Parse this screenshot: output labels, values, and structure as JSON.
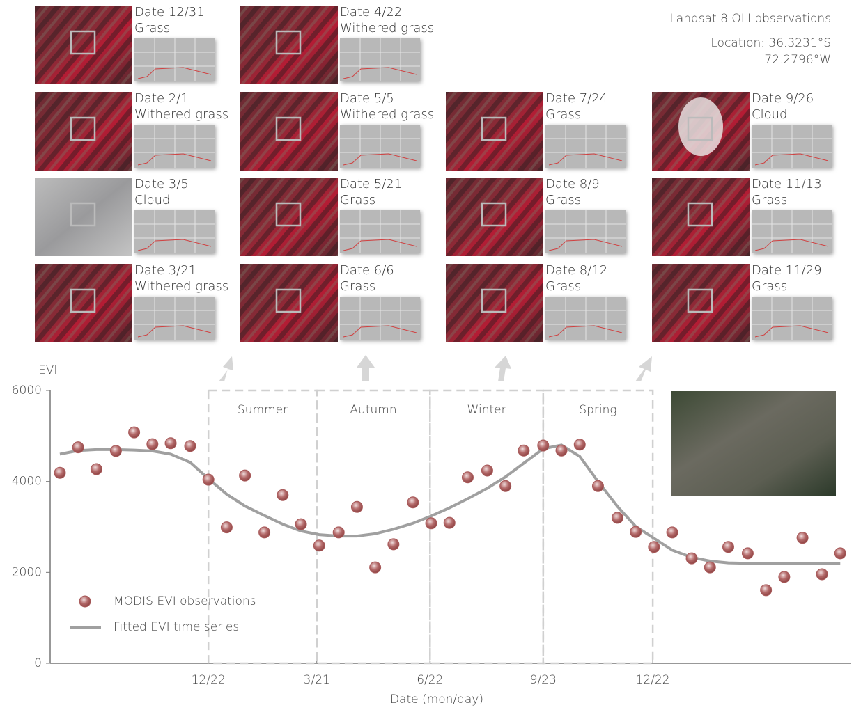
{
  "header": {
    "title": "Landsat 8 OLI observations",
    "location": [
      "Location: 36.3231°S",
      "72.2796°W"
    ]
  },
  "panels": [
    {
      "date": "Date 12/31",
      "label": "Grass"
    },
    {
      "date": "Date 2/1",
      "label": "Withered grass"
    },
    {
      "date": "Date 3/5",
      "label": "Cloud"
    },
    {
      "date": "Date 3/21",
      "label": "Withered grass"
    },
    {
      "date": "Date 4/22",
      "label": "Withered grass"
    },
    {
      "date": "Date 5/5",
      "label": "Withered grass"
    },
    {
      "date": "Date 5/21",
      "label": "Grass"
    },
    {
      "date": "Date 6/6",
      "label": "Grass"
    },
    {
      "date": "Date 7/24",
      "label": "Grass"
    },
    {
      "date": "Date 8/9",
      "label": "Grass"
    },
    {
      "date": "Date 8/12",
      "label": "Grass"
    },
    {
      "date": "Date 9/26",
      "label": "Cloud"
    },
    {
      "date": "Date 11/13",
      "label": "Grass"
    },
    {
      "date": "Date 11/29",
      "label": "Grass"
    }
  ],
  "chart_data": {
    "type": "scatter",
    "y_label": "EVI",
    "x_label": "Date (mon/day)",
    "ylim": [
      0,
      6000
    ],
    "yticks": [
      0,
      2000,
      4000,
      6000
    ],
    "xlim": [
      -130,
      528
    ],
    "xticks": [
      {
        "value": 0,
        "label": "12/22"
      },
      {
        "value": 89,
        "label": "3/21"
      },
      {
        "value": 182,
        "label": "6/22"
      },
      {
        "value": 275,
        "label": "9/23"
      },
      {
        "value": 365,
        "label": "12/22"
      }
    ],
    "spans": [
      {
        "label": "Summer",
        "xlim": [
          0,
          89
        ]
      },
      {
        "label": "Autumn",
        "xlim": [
          89,
          182
        ]
      },
      {
        "label": "Winter",
        "xlim": [
          182,
          275
        ]
      },
      {
        "label": "Spring",
        "xlim": [
          275,
          365
        ]
      }
    ],
    "x": [
      -122,
      -107,
      -92,
      -76,
      -61,
      -46,
      -31,
      -15,
      0,
      15,
      30,
      46,
      61,
      76,
      91,
      107,
      122,
      137,
      152,
      168,
      183,
      198,
      213,
      229,
      244,
      259,
      275,
      290,
      305,
      320,
      336,
      351,
      366,
      381,
      397,
      412,
      427,
      443,
      458,
      473,
      488,
      504,
      519
    ],
    "series": [
      {
        "name": "MODIS EVI observations",
        "color": "#a85a5a",
        "kind": "scatter",
        "values": [
          4190,
          4750,
          4270,
          4670,
          5080,
          4820,
          4840,
          4780,
          4040,
          2990,
          4130,
          2880,
          3700,
          3060,
          2590,
          2880,
          3440,
          2110,
          2620,
          3540,
          3080,
          3090,
          4090,
          4240,
          3900,
          4680,
          4790,
          4680,
          4810,
          3900,
          3200,
          2890,
          2560,
          2880,
          2310,
          2110,
          2560,
          2420,
          1610,
          1900,
          2760,
          1960,
          2420
        ]
      },
      {
        "name": "Fitted EVI time series",
        "color": "#a0a0a0",
        "kind": "line",
        "values": [
          4600,
          4680,
          4700,
          4700,
          4690,
          4670,
          4600,
          4420,
          4060,
          3720,
          3460,
          3250,
          3060,
          2910,
          2830,
          2800,
          2800,
          2850,
          2950,
          3080,
          3240,
          3420,
          3620,
          3850,
          4100,
          4400,
          4720,
          4800,
          4550,
          4000,
          3450,
          3010,
          2750,
          2490,
          2330,
          2250,
          2210,
          2200,
          2200,
          2200,
          2200,
          2200,
          2200
        ]
      }
    ],
    "legend": "lower left"
  }
}
